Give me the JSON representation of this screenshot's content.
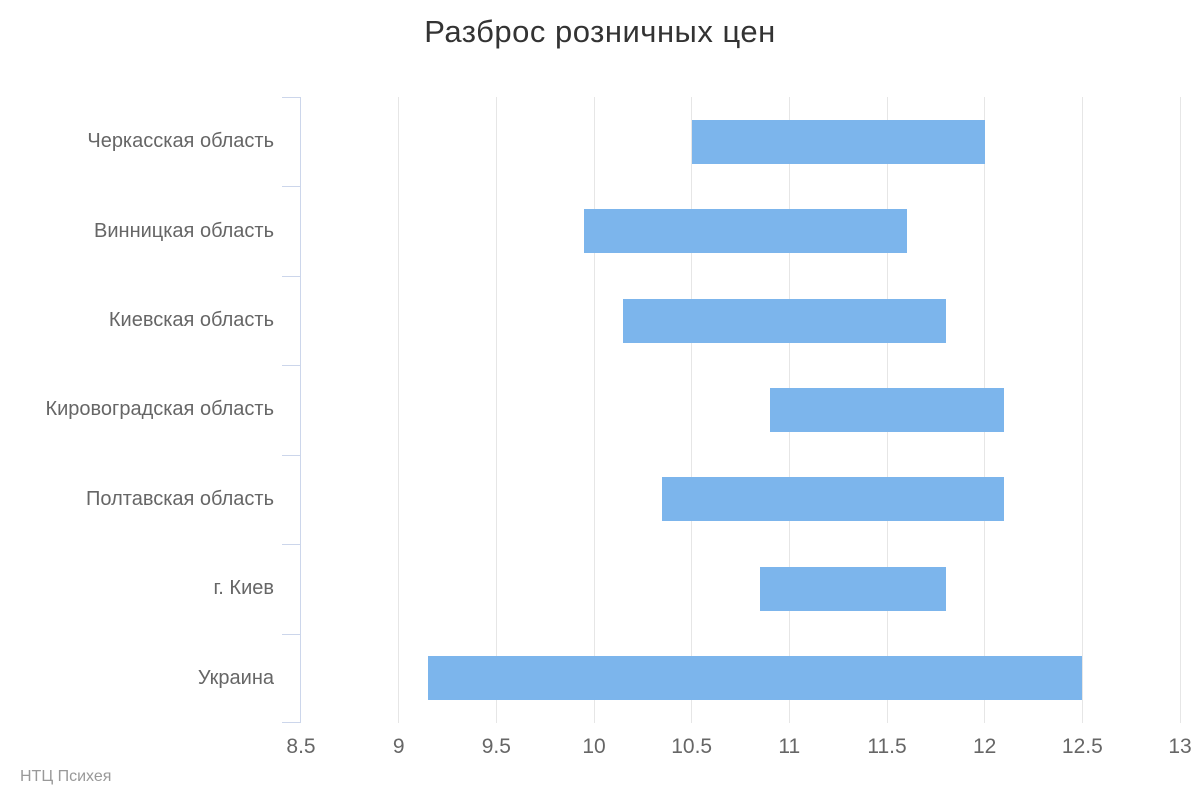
{
  "chart_data": {
    "type": "bar",
    "subtype": "range-bar (floating horizontal bars, min-max)",
    "title": "Разброс розничных цен",
    "categories": [
      "Черкасская область",
      "Винницкая область",
      "Киевская область",
      "Кировоградская область",
      "Полтавская область",
      "г. Киев",
      "Украина"
    ],
    "ranges": [
      [
        10.5,
        12.0
      ],
      [
        9.95,
        11.6
      ],
      [
        10.15,
        11.8
      ],
      [
        10.9,
        12.1
      ],
      [
        10.35,
        12.1
      ],
      [
        10.85,
        11.8
      ],
      [
        9.15,
        12.5
      ]
    ],
    "xlim": [
      8.5,
      13
    ],
    "x_ticks": [
      8.5,
      9,
      9.5,
      10,
      10.5,
      11,
      11.5,
      12,
      12.5,
      13
    ],
    "xlabel": "",
    "ylabel": "",
    "grid": true,
    "legend": false,
    "credits": "НТЦ Психея",
    "colors": {
      "bar": "#7cb5ec",
      "grid": "#e6e6e6",
      "axis": "#ccd6eb",
      "title_text": "#333333",
      "label_text": "#666666",
      "credits_text": "#999999"
    }
  }
}
